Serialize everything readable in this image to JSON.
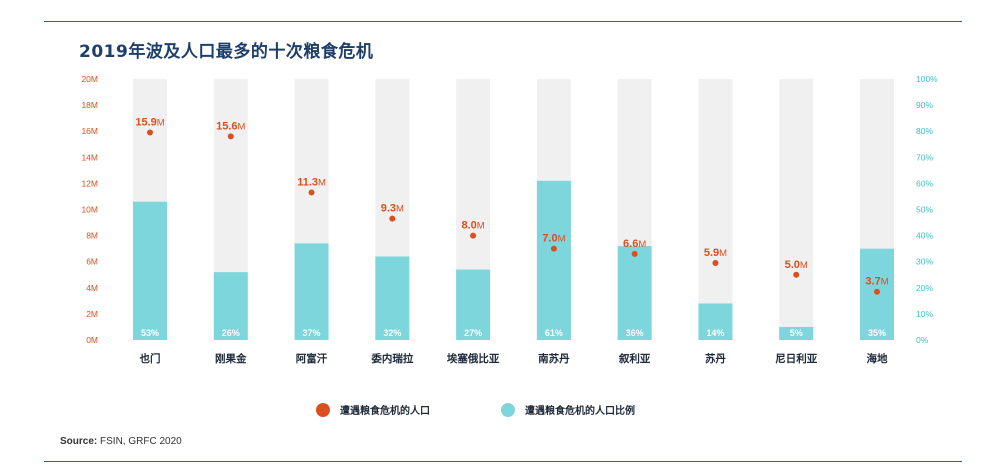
{
  "title": "2019年波及人口最多的十次粮食危机",
  "source_label": "Source:",
  "source_text": "FSIN, GRFC 2020",
  "colors": {
    "accent": "#d9501e",
    "bar": "#7dd6dc",
    "track": "#f0f0f0",
    "left_axis_text": "#d9501e",
    "right_axis_text": "#3cc0c8",
    "title": "#1f3f6b",
    "rule": "#2f5f8a"
  },
  "chart_data": {
    "type": "bar",
    "title": "2019年波及人口最多的十次粮食危机",
    "categories": [
      "也门",
      "刚果金",
      "阿富汗",
      "委内瑞拉",
      "埃塞俄比亚",
      "南苏丹",
      "叙利亚",
      "苏丹",
      "尼日利亚",
      "海地"
    ],
    "series": [
      {
        "name": "遭遇粮食危机的人口",
        "kind": "dot",
        "axis": "left",
        "values": [
          15.9,
          15.6,
          11.3,
          9.3,
          8.0,
          7.0,
          6.6,
          5.9,
          5.0,
          3.7
        ],
        "labels": [
          "15.9",
          "15.6",
          "11.3",
          "9.3",
          "8.0",
          "7.0",
          "6.6",
          "5.9",
          "5.0",
          "3.7"
        ],
        "label_suffix": "M"
      },
      {
        "name": "遭遇粮食危机的人口比例",
        "kind": "bar",
        "axis": "right",
        "values": [
          53,
          26,
          37,
          32,
          27,
          61,
          36,
          14,
          5,
          35
        ],
        "labels": [
          "53%",
          "26%",
          "37%",
          "32%",
          "27%",
          "61%",
          "36%",
          "14%",
          "5%",
          "35%"
        ]
      }
    ],
    "y_left": {
      "lim": [
        0,
        20
      ],
      "ticks": [
        "0M",
        "2M",
        "4M",
        "6M",
        "8M",
        "10M",
        "12M",
        "14M",
        "16M",
        "18M",
        "20M"
      ]
    },
    "y_right": {
      "lim": [
        0,
        100
      ],
      "ticks": [
        "0%",
        "10%",
        "20%",
        "30%",
        "40%",
        "50%",
        "60%",
        "70%",
        "80%",
        "90%",
        "100%"
      ]
    },
    "grid": false,
    "legend_position": "bottom-center"
  }
}
